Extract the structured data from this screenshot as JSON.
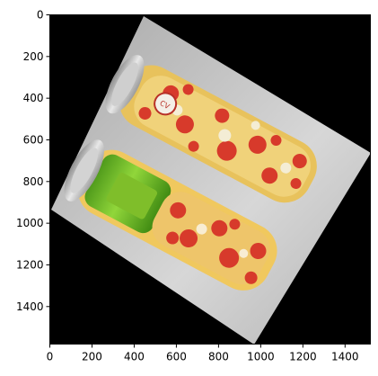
{
  "figure": {
    "x_ticks": [
      "0",
      "200",
      "400",
      "600",
      "800",
      "1000",
      "1200",
      "1400"
    ],
    "y_ticks": [
      "0",
      "200",
      "400",
      "600",
      "800",
      "1000",
      "1200",
      "1400"
    ],
    "xlim": [
      0,
      1520
    ],
    "ylim": [
      1580,
      0
    ]
  },
  "image": {
    "description_icon": "two-soda-cans-photo",
    "can_logo_text": "CV"
  }
}
